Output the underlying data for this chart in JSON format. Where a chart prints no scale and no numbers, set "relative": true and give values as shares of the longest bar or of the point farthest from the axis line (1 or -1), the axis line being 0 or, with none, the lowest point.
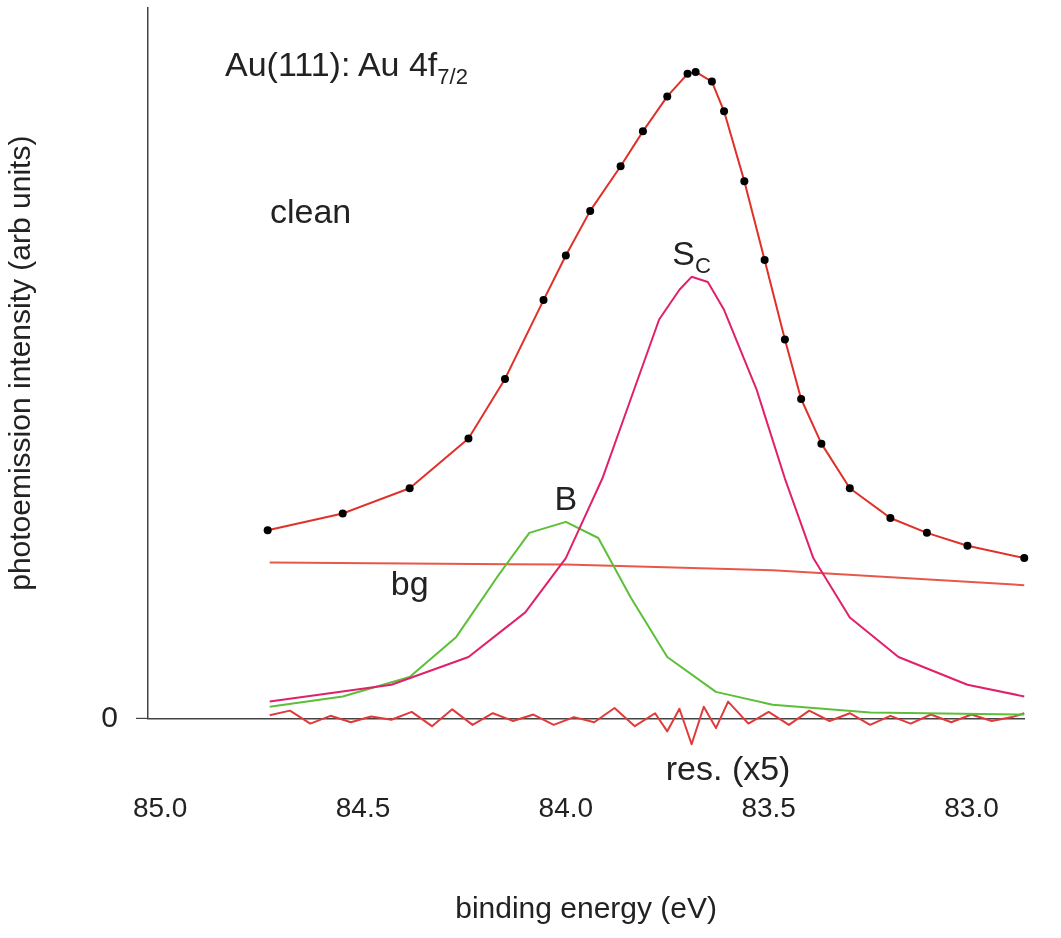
{
  "chart_data": {
    "type": "line",
    "title": "Au(111): Au 4f$_{7/2}$",
    "xlabel": "binding energy (eV)",
    "ylabel": "photoemission intensity (arb units)",
    "relative": true,
    "xlim": [
      85.03,
      82.87
    ],
    "xticks": [
      {
        "value": 85.0,
        "label": "85.0"
      },
      {
        "value": 84.5,
        "label": "84.5"
      },
      {
        "value": 84.0,
        "label": "84.0"
      },
      {
        "value": 83.5,
        "label": "83.5"
      },
      {
        "value": 83.0,
        "label": "83.0"
      }
    ],
    "grid": false,
    "legend": false,
    "marker": "none",
    "line_style": "solid",
    "annotations": [
      "clean",
      "0"
    ],
    "series": [
      {
        "type": "scatter",
        "color": "#000000",
        "marker": "circle",
        "x": [
          84.735,
          84.55,
          84.385,
          84.24,
          84.15,
          84.055,
          84.0,
          83.94,
          83.865,
          83.81,
          83.75,
          83.7,
          83.68,
          83.64,
          83.61,
          83.56,
          83.51,
          83.46,
          83.42,
          83.37,
          83.3,
          83.2,
          83.11,
          83.01,
          82.87
        ],
        "values": [
          0.291,
          0.317,
          0.356,
          0.433,
          0.525,
          0.647,
          0.716,
          0.785,
          0.854,
          0.908,
          0.962,
          0.997,
          1.0,
          0.985,
          0.939,
          0.831,
          0.709,
          0.586,
          0.494,
          0.425,
          0.356,
          0.31,
          0.287,
          0.267,
          0.248
        ]
      },
      {
        "color": "#e0302a",
        "x": [
          84.735,
          84.55,
          84.385,
          84.24,
          84.15,
          84.055,
          84.0,
          83.94,
          83.865,
          83.81,
          83.75,
          83.7,
          83.68,
          83.64,
          83.61,
          83.56,
          83.51,
          83.46,
          83.42,
          83.37,
          83.3,
          83.2,
          83.11,
          83.01,
          82.87
        ],
        "values": [
          0.291,
          0.317,
          0.356,
          0.433,
          0.525,
          0.647,
          0.716,
          0.785,
          0.854,
          0.908,
          0.962,
          0.997,
          1.0,
          0.985,
          0.939,
          0.831,
          0.709,
          0.586,
          0.494,
          0.425,
          0.356,
          0.31,
          0.287,
          0.267,
          0.248
        ]
      },
      {
        "name": "S$_{C}$",
        "color": "#e0206a",
        "x": [
          84.73,
          84.43,
          84.24,
          84.1,
          84.0,
          83.91,
          83.84,
          83.77,
          83.72,
          83.69,
          83.65,
          83.61,
          83.53,
          83.46,
          83.39,
          83.3,
          83.18,
          83.01,
          82.87
        ],
        "values": [
          0.026,
          0.052,
          0.095,
          0.164,
          0.248,
          0.371,
          0.494,
          0.617,
          0.663,
          0.683,
          0.675,
          0.632,
          0.509,
          0.371,
          0.248,
          0.156,
          0.095,
          0.052,
          0.034
        ]
      },
      {
        "name": "B",
        "color": "#5cbf38",
        "x": [
          84.73,
          84.55,
          84.385,
          84.27,
          84.17,
          84.09,
          84.0,
          83.92,
          83.84,
          83.75,
          83.63,
          83.49,
          83.25,
          82.87
        ],
        "values": [
          0.018,
          0.034,
          0.064,
          0.126,
          0.218,
          0.287,
          0.304,
          0.279,
          0.187,
          0.095,
          0.041,
          0.021,
          0.009,
          0.006
        ]
      },
      {
        "name": "bg",
        "color": "#e8584a",
        "x": [
          84.73,
          84.0,
          83.49,
          82.87
        ],
        "values": [
          0.241,
          0.238,
          0.229,
          0.206
        ]
      },
      {
        "name": "res. (x5)",
        "color": "#e03a3a",
        "x": [
          84.73,
          84.68,
          84.63,
          84.58,
          84.53,
          84.48,
          84.43,
          84.38,
          84.33,
          84.28,
          84.23,
          84.18,
          84.13,
          84.08,
          84.03,
          83.98,
          83.93,
          83.88,
          83.83,
          83.78,
          83.75,
          83.72,
          83.69,
          83.66,
          83.63,
          83.6,
          83.55,
          83.5,
          83.45,
          83.4,
          83.35,
          83.3,
          83.25,
          83.2,
          83.15,
          83.1,
          83.05,
          83.0,
          82.95,
          82.9,
          82.87
        ],
        "values": [
          0.005,
          0.012,
          -0.008,
          0.004,
          -0.006,
          0.003,
          -0.002,
          0.01,
          -0.012,
          0.014,
          -0.01,
          0.008,
          -0.004,
          0.006,
          -0.01,
          0.002,
          -0.006,
          0.016,
          -0.012,
          0.008,
          -0.02,
          0.015,
          -0.04,
          0.018,
          -0.015,
          0.026,
          -0.008,
          0.01,
          -0.01,
          0.012,
          -0.004,
          0.008,
          -0.01,
          0.004,
          -0.008,
          0.006,
          -0.006,
          0.006,
          -0.004,
          0.002,
          0.008
        ]
      }
    ]
  }
}
